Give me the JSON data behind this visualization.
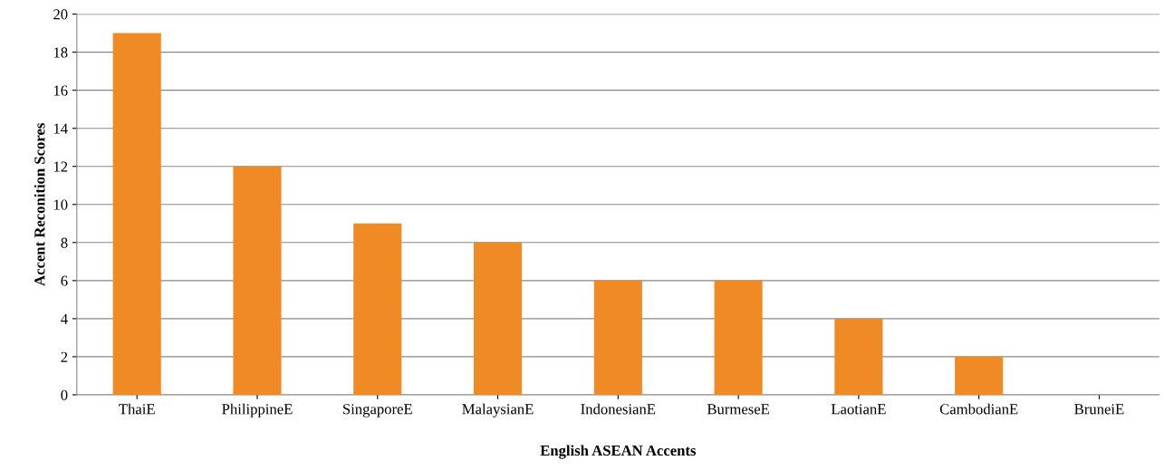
{
  "chart_data": {
    "type": "bar",
    "xlabel": "English ASEAN Accents",
    "ylabel": "Accent Reconition Scores",
    "categories": [
      "ThaiE",
      "PhilippineE",
      "SingaporeE",
      "MalaysianE",
      "IndonesianE",
      "BurmeseE",
      "LaotianE",
      "CambodianE",
      "BruneiE"
    ],
    "values": [
      19,
      12,
      9,
      8,
      6,
      6,
      4,
      2,
      0
    ],
    "color": "#f08a24",
    "ylim": [
      0,
      20
    ],
    "yticks": [
      0,
      2,
      4,
      6,
      8,
      10,
      12,
      14,
      16,
      18,
      20
    ],
    "grid": "y",
    "legend": false
  }
}
